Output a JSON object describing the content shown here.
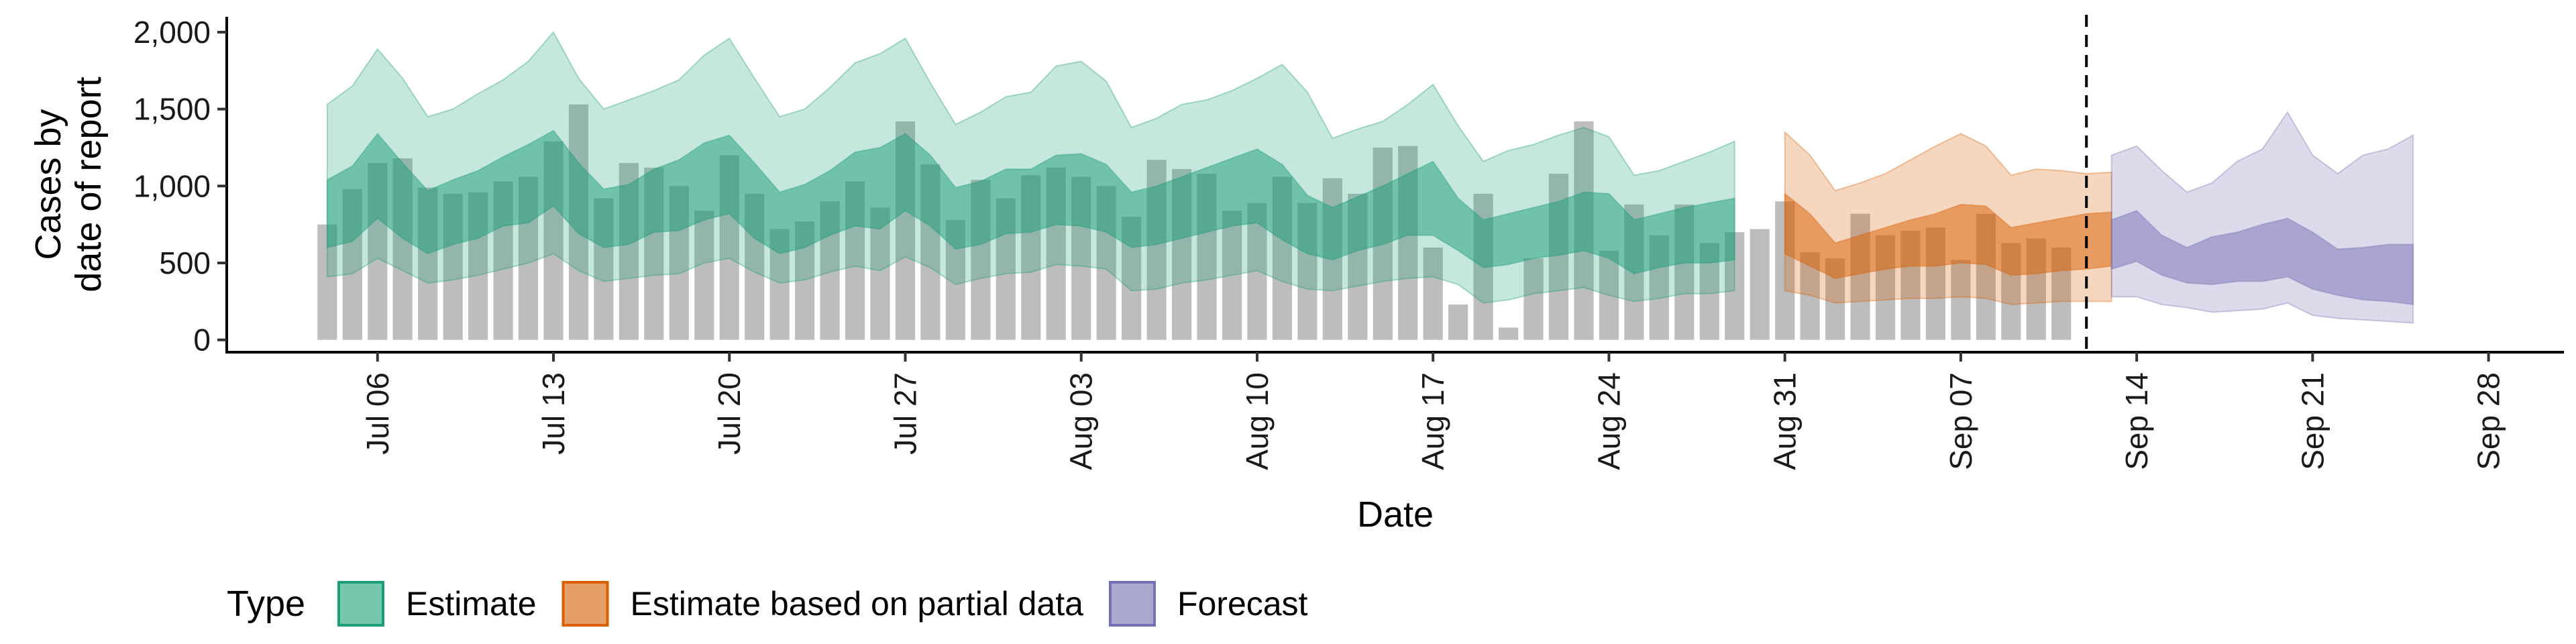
{
  "chart_data": {
    "type": "area",
    "xlabel": "Date",
    "ylabel_lines": [
      "Cases by",
      "date of report"
    ],
    "x_axis": {
      "type": "date",
      "min": "2020-06-30",
      "max": "2020-10-01"
    },
    "y_axis": {
      "min": -80,
      "max": 2100
    },
    "x_ticks": [
      {
        "date": "2020-07-06",
        "label": "Jul 06"
      },
      {
        "date": "2020-07-13",
        "label": "Jul 13"
      },
      {
        "date": "2020-07-20",
        "label": "Jul 20"
      },
      {
        "date": "2020-07-27",
        "label": "Jul 27"
      },
      {
        "date": "2020-08-03",
        "label": "Aug 03"
      },
      {
        "date": "2020-08-10",
        "label": "Aug 10"
      },
      {
        "date": "2020-08-17",
        "label": "Aug 17"
      },
      {
        "date": "2020-08-24",
        "label": "Aug 24"
      },
      {
        "date": "2020-08-31",
        "label": "Aug 31"
      },
      {
        "date": "2020-09-07",
        "label": "Sep 07"
      },
      {
        "date": "2020-09-14",
        "label": "Sep 14"
      },
      {
        "date": "2020-09-21",
        "label": "Sep 21"
      },
      {
        "date": "2020-09-28",
        "label": "Sep 28"
      }
    ],
    "y_ticks": [
      {
        "value": 0,
        "label": "0"
      },
      {
        "value": 500,
        "label": "500"
      },
      {
        "value": 1000,
        "label": "1,000"
      },
      {
        "value": 1500,
        "label": "1,500"
      },
      {
        "value": 2000,
        "label": "2,000"
      }
    ],
    "reported_cases": {
      "start_date": "2020-07-04",
      "values": [
        750,
        980,
        1150,
        1180,
        990,
        950,
        960,
        1030,
        1060,
        1290,
        1530,
        920,
        1150,
        1120,
        1000,
        840,
        1200,
        950,
        720,
        770,
        900,
        1030,
        860,
        1420,
        1140,
        780,
        1040,
        920,
        1070,
        1120,
        1060,
        1000,
        800,
        1170,
        1110,
        1080,
        840,
        890,
        1060,
        890,
        1050,
        950,
        1250,
        1260,
        600,
        230,
        950,
        80,
        530,
        1080,
        1420,
        580,
        880,
        680,
        880,
        630,
        700,
        720,
        900,
        570,
        530,
        820,
        680,
        710,
        730,
        520,
        820,
        630,
        660,
        600
      ]
    },
    "bar_color": "#bdbdbd",
    "forecast_cutoff_date": "2020-09-12",
    "series": [
      {
        "name": "Estimate",
        "color": "#1b9e77",
        "start_date": "2020-07-04",
        "outer_upper": [
          1530,
          1650,
          1890,
          1700,
          1450,
          1500,
          1600,
          1690,
          1810,
          2000,
          1700,
          1500,
          1560,
          1620,
          1690,
          1850,
          1960,
          1700,
          1450,
          1500,
          1640,
          1800,
          1860,
          1960,
          1670,
          1400,
          1480,
          1580,
          1610,
          1780,
          1810,
          1680,
          1380,
          1440,
          1530,
          1560,
          1620,
          1700,
          1790,
          1610,
          1310,
          1370,
          1420,
          1530,
          1660,
          1390,
          1160,
          1230,
          1270,
          1330,
          1380,
          1320,
          1070,
          1100,
          1160,
          1220,
          1290
        ],
        "inner_upper": [
          1040,
          1130,
          1340,
          1150,
          970,
          1040,
          1100,
          1190,
          1270,
          1360,
          1150,
          980,
          1010,
          1110,
          1170,
          1280,
          1330,
          1150,
          960,
          1010,
          1100,
          1220,
          1250,
          1340,
          1200,
          990,
          1030,
          1110,
          1110,
          1200,
          1210,
          1140,
          960,
          1000,
          1060,
          1120,
          1180,
          1240,
          1140,
          940,
          860,
          930,
          1000,
          1080,
          1160,
          920,
          780,
          820,
          860,
          900,
          960,
          950,
          780,
          820,
          860,
          890,
          920
        ],
        "inner_lower": [
          600,
          640,
          790,
          660,
          560,
          620,
          660,
          740,
          760,
          870,
          690,
          600,
          620,
          700,
          710,
          780,
          820,
          660,
          560,
          600,
          680,
          740,
          720,
          840,
          740,
          590,
          620,
          690,
          700,
          750,
          740,
          700,
          600,
          620,
          660,
          700,
          740,
          760,
          650,
          560,
          520,
          580,
          620,
          680,
          680,
          580,
          470,
          490,
          530,
          550,
          580,
          530,
          430,
          470,
          500,
          500,
          520
        ],
        "outer_lower": [
          410,
          430,
          530,
          450,
          370,
          390,
          420,
          460,
          500,
          560,
          450,
          380,
          400,
          420,
          430,
          500,
          530,
          440,
          370,
          390,
          440,
          480,
          450,
          540,
          470,
          360,
          400,
          430,
          440,
          490,
          480,
          460,
          320,
          330,
          370,
          390,
          420,
          450,
          380,
          330,
          320,
          350,
          380,
          400,
          410,
          360,
          240,
          260,
          300,
          320,
          340,
          290,
          250,
          270,
          300,
          300,
          320
        ]
      },
      {
        "name": "Estimate based on partial data",
        "color": "#d95f02",
        "start_date": "2020-08-31",
        "outer_upper": [
          1350,
          1200,
          970,
          1020,
          1080,
          1170,
          1260,
          1340,
          1260,
          1070,
          1110,
          1100,
          1080,
          1090
        ],
        "inner_upper": [
          950,
          820,
          630,
          680,
          730,
          780,
          820,
          880,
          870,
          730,
          760,
          790,
          820,
          830
        ],
        "inner_lower": [
          560,
          480,
          400,
          430,
          460,
          480,
          480,
          500,
          490,
          420,
          430,
          450,
          460,
          480
        ],
        "outer_lower": [
          320,
          290,
          240,
          250,
          260,
          270,
          270,
          280,
          270,
          230,
          240,
          250,
          250,
          250
        ]
      },
      {
        "name": "Forecast",
        "color": "#7570b3",
        "start_date": "2020-09-13",
        "outer_upper": [
          1200,
          1260,
          1100,
          960,
          1020,
          1160,
          1240,
          1480,
          1200,
          1080,
          1200,
          1240,
          1330
        ],
        "inner_upper": [
          780,
          840,
          680,
          600,
          670,
          700,
          750,
          790,
          700,
          590,
          600,
          620,
          620
        ],
        "inner_lower": [
          460,
          510,
          420,
          370,
          360,
          380,
          380,
          410,
          330,
          290,
          260,
          250,
          230
        ],
        "outer_lower": [
          280,
          280,
          230,
          210,
          180,
          190,
          200,
          240,
          160,
          140,
          130,
          120,
          110
        ]
      }
    ],
    "legend": {
      "title": "Type",
      "position": "bottom",
      "items": [
        {
          "label": "Estimate",
          "color": "#1b9e77"
        },
        {
          "label": "Estimate based on partial data",
          "color": "#d95f02"
        },
        {
          "label": "Forecast",
          "color": "#7570b3"
        }
      ]
    },
    "grid": false
  }
}
